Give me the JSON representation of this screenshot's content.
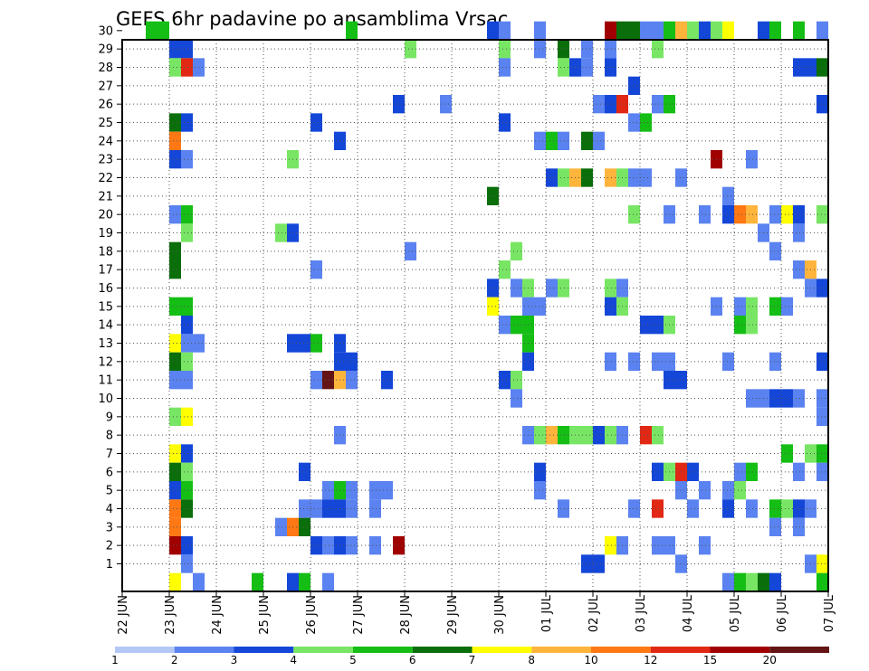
{
  "chart_data": {
    "type": "heatmap",
    "title": "GEFS 6hr padavine po ansamblima Vrsac",
    "xlabel": "",
    "ylabel": "",
    "x_tick_labels": [
      "22 JUN",
      "23 JUN",
      "24 JUN",
      "25 JUN",
      "26 JUN",
      "27 JUN",
      "28 JUN",
      "29 JUN",
      "30 JUN",
      "01 JUL",
      "02 JUL",
      "03 JUL",
      "04 JUL",
      "05 JUL",
      "06 JUL",
      "07 JUL"
    ],
    "y_tick_labels": [
      "1",
      "2",
      "3",
      "4",
      "5",
      "6",
      "7",
      "8",
      "9",
      "10",
      "11",
      "12",
      "13",
      "14",
      "15",
      "16",
      "17",
      "18",
      "19",
      "20",
      "21",
      "22",
      "23",
      "24",
      "25",
      "26",
      "27",
      "28",
      "29",
      "30"
    ],
    "grid": true,
    "colorbar": {
      "levels": [
        "1",
        "2",
        "3",
        "4",
        "5",
        "6",
        "7",
        "8",
        "10",
        "12",
        "15",
        "20"
      ],
      "colors": [
        "#b4c8f8",
        "#5a82f0",
        "#1446d8",
        "#78e664",
        "#14be14",
        "#0a6e0a",
        "#ffff00",
        "#ffb43c",
        "#ff7814",
        "#e12814",
        "#a00000",
        "#641414"
      ]
    },
    "x_day_offset_range": [
      0,
      15
    ],
    "cells": [
      [
        0.5,
        1.0,
        30,
        4
      ],
      [
        4.75,
        5.0,
        30,
        4
      ],
      [
        7.75,
        8.0,
        30,
        2
      ],
      [
        8.0,
        8.25,
        30,
        1
      ],
      [
        8.75,
        9.0,
        30,
        1
      ],
      [
        10.25,
        10.5,
        30,
        10
      ],
      [
        10.5,
        11.0,
        30,
        5
      ],
      [
        11.0,
        11.5,
        30,
        1
      ],
      [
        11.5,
        11.75,
        30,
        4
      ],
      [
        11.75,
        12.0,
        30,
        7
      ],
      [
        12.0,
        12.25,
        30,
        3
      ],
      [
        12.25,
        12.5,
        30,
        2
      ],
      [
        12.5,
        12.75,
        30,
        3
      ],
      [
        12.75,
        13.0,
        30,
        6
      ],
      [
        13.5,
        13.75,
        30,
        2
      ],
      [
        13.75,
        14.0,
        30,
        4
      ],
      [
        14.25,
        14.5,
        30,
        4
      ],
      [
        14.75,
        15.0,
        30,
        1
      ],
      [
        1.0,
        1.5,
        29,
        2
      ],
      [
        6.0,
        6.25,
        29,
        3
      ],
      [
        8.0,
        8.25,
        29,
        3
      ],
      [
        8.75,
        9.0,
        29,
        1
      ],
      [
        9.25,
        9.5,
        29,
        5
      ],
      [
        9.75,
        10.0,
        29,
        1
      ],
      [
        10.25,
        10.5,
        29,
        1
      ],
      [
        11.25,
        11.5,
        29,
        3
      ],
      [
        1.0,
        1.25,
        28,
        3
      ],
      [
        1.25,
        1.5,
        28,
        9
      ],
      [
        1.5,
        1.75,
        28,
        1
      ],
      [
        8.0,
        8.25,
        28,
        1
      ],
      [
        9.25,
        9.5,
        28,
        3
      ],
      [
        9.5,
        9.75,
        28,
        2
      ],
      [
        9.75,
        10.0,
        28,
        1
      ],
      [
        10.25,
        10.5,
        28,
        2
      ],
      [
        14.25,
        14.75,
        28,
        2
      ],
      [
        14.75,
        15.0,
        28,
        5
      ],
      [
        10.75,
        11.0,
        27,
        2
      ],
      [
        5.75,
        6.0,
        26,
        2
      ],
      [
        6.75,
        7.0,
        26,
        1
      ],
      [
        10.0,
        10.25,
        26,
        1
      ],
      [
        10.25,
        10.5,
        26,
        2
      ],
      [
        10.5,
        10.75,
        26,
        9
      ],
      [
        11.25,
        11.5,
        26,
        1
      ],
      [
        11.5,
        11.75,
        26,
        4
      ],
      [
        14.75,
        15.0,
        26,
        2
      ],
      [
        1.0,
        1.25,
        25,
        5
      ],
      [
        1.25,
        1.5,
        25,
        2
      ],
      [
        4.0,
        4.25,
        25,
        2
      ],
      [
        8.0,
        8.25,
        25,
        2
      ],
      [
        10.75,
        11.0,
        25,
        1
      ],
      [
        11.0,
        11.25,
        25,
        4
      ],
      [
        1.0,
        1.25,
        24,
        8
      ],
      [
        4.5,
        4.75,
        24,
        2
      ],
      [
        8.75,
        9.0,
        24,
        1
      ],
      [
        9.0,
        9.25,
        24,
        4
      ],
      [
        9.25,
        9.5,
        24,
        1
      ],
      [
        9.75,
        10.0,
        24,
        5
      ],
      [
        10.0,
        10.25,
        24,
        1
      ],
      [
        1.0,
        1.25,
        23,
        2
      ],
      [
        1.25,
        1.5,
        23,
        1
      ],
      [
        3.5,
        3.75,
        23,
        3
      ],
      [
        12.5,
        12.75,
        23,
        10
      ],
      [
        13.25,
        13.5,
        23,
        1
      ],
      [
        9.0,
        9.25,
        22,
        2
      ],
      [
        9.25,
        9.5,
        22,
        3
      ],
      [
        9.5,
        9.75,
        22,
        7
      ],
      [
        9.75,
        10.0,
        22,
        5
      ],
      [
        10.25,
        10.5,
        22,
        7
      ],
      [
        10.5,
        10.75,
        22,
        3
      ],
      [
        10.75,
        11.0,
        22,
        1
      ],
      [
        11.0,
        11.25,
        22,
        1
      ],
      [
        11.75,
        12.0,
        22,
        1
      ],
      [
        7.75,
        8.0,
        21,
        5
      ],
      [
        12.75,
        13.0,
        21,
        1
      ],
      [
        1.0,
        1.25,
        20,
        1
      ],
      [
        1.25,
        1.5,
        20,
        4
      ],
      [
        10.75,
        11.0,
        20,
        3
      ],
      [
        11.5,
        11.75,
        20,
        1
      ],
      [
        12.25,
        12.5,
        20,
        1
      ],
      [
        12.75,
        13.0,
        20,
        2
      ],
      [
        13.0,
        13.25,
        20,
        8
      ],
      [
        13.25,
        13.5,
        20,
        7
      ],
      [
        13.75,
        14.0,
        20,
        1
      ],
      [
        14.0,
        14.25,
        20,
        6
      ],
      [
        14.25,
        14.5,
        20,
        2
      ],
      [
        14.75,
        15.0,
        20,
        3
      ],
      [
        1.25,
        1.5,
        19,
        3
      ],
      [
        3.25,
        3.5,
        19,
        3
      ],
      [
        3.5,
        3.75,
        19,
        2
      ],
      [
        13.5,
        13.75,
        19,
        1
      ],
      [
        14.25,
        14.5,
        19,
        1
      ],
      [
        1.0,
        1.25,
        18,
        5
      ],
      [
        6.0,
        6.25,
        18,
        1
      ],
      [
        8.25,
        8.5,
        18,
        3
      ],
      [
        13.75,
        14.0,
        18,
        1
      ],
      [
        1.0,
        1.25,
        17,
        5
      ],
      [
        4.0,
        4.25,
        17,
        1
      ],
      [
        8.0,
        8.25,
        17,
        3
      ],
      [
        14.25,
        14.5,
        17,
        1
      ],
      [
        14.5,
        14.75,
        17,
        7
      ],
      [
        7.75,
        8.0,
        16,
        2
      ],
      [
        8.25,
        8.5,
        16,
        1
      ],
      [
        8.5,
        8.75,
        16,
        3
      ],
      [
        9.0,
        9.25,
        16,
        1
      ],
      [
        9.25,
        9.5,
        16,
        3
      ],
      [
        10.25,
        10.5,
        16,
        3
      ],
      [
        10.5,
        10.75,
        16,
        1
      ],
      [
        14.5,
        14.75,
        16,
        1
      ],
      [
        14.75,
        15.0,
        16,
        2
      ],
      [
        1.0,
        1.5,
        15,
        4
      ],
      [
        7.75,
        8.0,
        15,
        6
      ],
      [
        8.5,
        9.0,
        15,
        1
      ],
      [
        10.25,
        10.5,
        15,
        2
      ],
      [
        10.5,
        10.75,
        15,
        3
      ],
      [
        12.5,
        12.75,
        15,
        1
      ],
      [
        13.0,
        13.25,
        15,
        1
      ],
      [
        13.25,
        13.5,
        15,
        3
      ],
      [
        13.75,
        14.0,
        15,
        4
      ],
      [
        14.0,
        14.25,
        15,
        1
      ],
      [
        1.25,
        1.5,
        14,
        2
      ],
      [
        8.0,
        8.25,
        14,
        1
      ],
      [
        8.25,
        8.75,
        14,
        4
      ],
      [
        11.0,
        11.5,
        14,
        2
      ],
      [
        11.5,
        11.75,
        14,
        3
      ],
      [
        13.0,
        13.25,
        14,
        4
      ],
      [
        13.25,
        13.5,
        14,
        3
      ],
      [
        1.0,
        1.25,
        13,
        6
      ],
      [
        1.25,
        1.75,
        13,
        1
      ],
      [
        3.5,
        4.0,
        13,
        2
      ],
      [
        4.0,
        4.25,
        13,
        4
      ],
      [
        4.5,
        4.75,
        13,
        2
      ],
      [
        8.5,
        8.75,
        13,
        4
      ],
      [
        1.0,
        1.25,
        12,
        5
      ],
      [
        1.25,
        1.5,
        12,
        3
      ],
      [
        4.5,
        5.0,
        12,
        2
      ],
      [
        8.5,
        8.75,
        12,
        2
      ],
      [
        10.25,
        10.5,
        12,
        1
      ],
      [
        10.75,
        11.0,
        12,
        1
      ],
      [
        11.25,
        11.75,
        12,
        1
      ],
      [
        12.75,
        13.0,
        12,
        1
      ],
      [
        13.75,
        14.0,
        12,
        1
      ],
      [
        14.75,
        15.0,
        12,
        2
      ],
      [
        1.0,
        1.5,
        11,
        1
      ],
      [
        4.0,
        4.25,
        11,
        1
      ],
      [
        4.25,
        4.5,
        11,
        11
      ],
      [
        4.5,
        4.75,
        11,
        7
      ],
      [
        4.75,
        5.0,
        11,
        1
      ],
      [
        5.5,
        5.75,
        11,
        2
      ],
      [
        8.0,
        8.25,
        11,
        2
      ],
      [
        8.25,
        8.5,
        11,
        3
      ],
      [
        11.5,
        12.0,
        11,
        2
      ],
      [
        8.25,
        8.5,
        10,
        1
      ],
      [
        13.25,
        13.75,
        10,
        1
      ],
      [
        13.75,
        14.25,
        10,
        2
      ],
      [
        14.25,
        14.5,
        10,
        1
      ],
      [
        14.75,
        15.0,
        10,
        1
      ],
      [
        1.0,
        1.25,
        9,
        3
      ],
      [
        1.25,
        1.5,
        9,
        6
      ],
      [
        14.75,
        15.0,
        9,
        1
      ],
      [
        4.5,
        4.75,
        8,
        1
      ],
      [
        8.5,
        8.75,
        8,
        1
      ],
      [
        8.75,
        9.0,
        8,
        3
      ],
      [
        9.0,
        9.25,
        8,
        7
      ],
      [
        9.25,
        9.5,
        8,
        4
      ],
      [
        9.5,
        10.0,
        8,
        3
      ],
      [
        10.0,
        10.25,
        8,
        2
      ],
      [
        10.25,
        10.5,
        8,
        3
      ],
      [
        10.5,
        10.75,
        8,
        1
      ],
      [
        11.0,
        11.25,
        8,
        9
      ],
      [
        11.25,
        11.5,
        8,
        3
      ],
      [
        1.0,
        1.25,
        7,
        6
      ],
      [
        1.25,
        1.5,
        7,
        2
      ],
      [
        14.0,
        14.25,
        7,
        4
      ],
      [
        14.5,
        14.75,
        7,
        3
      ],
      [
        14.75,
        15.0,
        7,
        4
      ],
      [
        1.0,
        1.25,
        6,
        5
      ],
      [
        1.25,
        1.5,
        6,
        3
      ],
      [
        3.75,
        4.0,
        6,
        2
      ],
      [
        8.75,
        9.0,
        6,
        2
      ],
      [
        11.25,
        11.5,
        6,
        2
      ],
      [
        11.5,
        11.75,
        6,
        3
      ],
      [
        11.75,
        12.0,
        6,
        9
      ],
      [
        12.0,
        12.25,
        6,
        2
      ],
      [
        13.0,
        13.25,
        6,
        1
      ],
      [
        13.25,
        13.5,
        6,
        4
      ],
      [
        14.25,
        14.5,
        6,
        1
      ],
      [
        14.75,
        15.0,
        6,
        1
      ],
      [
        1.0,
        1.25,
        5,
        2
      ],
      [
        1.25,
        1.5,
        5,
        4
      ],
      [
        4.25,
        4.5,
        5,
        1
      ],
      [
        4.5,
        4.75,
        5,
        4
      ],
      [
        4.75,
        5.0,
        5,
        1
      ],
      [
        5.25,
        5.75,
        5,
        1
      ],
      [
        8.75,
        9.0,
        5,
        1
      ],
      [
        11.75,
        12.0,
        5,
        1
      ],
      [
        12.25,
        12.5,
        5,
        1
      ],
      [
        12.75,
        13.0,
        5,
        1
      ],
      [
        13.0,
        13.25,
        5,
        3
      ],
      [
        1.0,
        1.25,
        4,
        8
      ],
      [
        1.25,
        1.5,
        4,
        5
      ],
      [
        3.75,
        4.25,
        4,
        1
      ],
      [
        4.25,
        4.75,
        4,
        2
      ],
      [
        4.75,
        5.0,
        4,
        1
      ],
      [
        5.25,
        5.5,
        4,
        1
      ],
      [
        9.25,
        9.5,
        4,
        1
      ],
      [
        10.75,
        11.0,
        4,
        1
      ],
      [
        11.25,
        11.5,
        4,
        9
      ],
      [
        12.0,
        12.25,
        4,
        1
      ],
      [
        12.75,
        13.0,
        4,
        2
      ],
      [
        13.25,
        13.5,
        4,
        1
      ],
      [
        13.75,
        14.0,
        4,
        4
      ],
      [
        14.0,
        14.25,
        4,
        3
      ],
      [
        14.25,
        14.5,
        4,
        2
      ],
      [
        14.5,
        14.75,
        4,
        1
      ],
      [
        1.0,
        1.25,
        3,
        8
      ],
      [
        3.25,
        3.5,
        3,
        1
      ],
      [
        3.5,
        3.75,
        3,
        8
      ],
      [
        3.75,
        4.0,
        3,
        5
      ],
      [
        13.75,
        14.0,
        3,
        1
      ],
      [
        14.25,
        14.5,
        3,
        1
      ],
      [
        1.0,
        1.25,
        2,
        10
      ],
      [
        1.25,
        1.5,
        2,
        2
      ],
      [
        4.0,
        4.25,
        2,
        2
      ],
      [
        4.25,
        4.5,
        2,
        1
      ],
      [
        4.5,
        4.75,
        2,
        2
      ],
      [
        4.75,
        5.0,
        2,
        1
      ],
      [
        5.25,
        5.5,
        2,
        1
      ],
      [
        5.75,
        6.0,
        2,
        10
      ],
      [
        10.25,
        10.5,
        2,
        6
      ],
      [
        10.5,
        10.75,
        2,
        1
      ],
      [
        11.25,
        11.75,
        2,
        1
      ],
      [
        12.25,
        12.5,
        2,
        1
      ],
      [
        1.25,
        1.5,
        1,
        1
      ],
      [
        9.75,
        10.25,
        1,
        2
      ],
      [
        11.75,
        12.0,
        1,
        1
      ],
      [
        14.5,
        14.75,
        1,
        1
      ],
      [
        14.75,
        15.0,
        1,
        6
      ],
      [
        1.0,
        1.25,
        0,
        6
      ],
      [
        1.5,
        1.75,
        0,
        1
      ],
      [
        2.75,
        3.0,
        0,
        4
      ],
      [
        3.5,
        3.75,
        0,
        2
      ],
      [
        3.75,
        4.0,
        0,
        4
      ],
      [
        4.25,
        4.5,
        0,
        1
      ],
      [
        12.75,
        13.0,
        0,
        1
      ],
      [
        13.0,
        13.25,
        0,
        4
      ],
      [
        13.25,
        13.5,
        0,
        3
      ],
      [
        13.5,
        13.75,
        0,
        5
      ],
      [
        13.75,
        14.0,
        0,
        2
      ],
      [
        14.75,
        15.0,
        0,
        4
      ]
    ]
  }
}
